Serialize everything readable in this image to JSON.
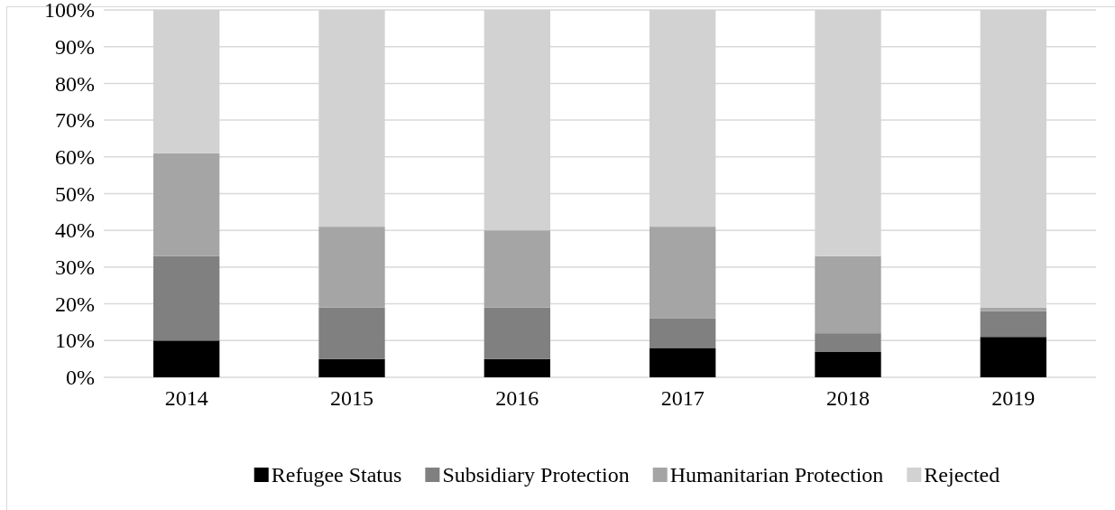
{
  "chart_data": {
    "type": "bar",
    "stacked": true,
    "categories": [
      "2014",
      "2015",
      "2016",
      "2017",
      "2018",
      "2019"
    ],
    "series": [
      {
        "name": "Refugee Status",
        "color": "#000000",
        "values": [
          10,
          5,
          5,
          8,
          7,
          11
        ]
      },
      {
        "name": "Subsidiary Protection",
        "color": "#808080",
        "values": [
          23,
          14,
          14,
          8,
          5,
          7
        ]
      },
      {
        "name": "Humanitarian Protection",
        "color": "#a5a5a5",
        "values": [
          28,
          22,
          21,
          25,
          21,
          1
        ]
      },
      {
        "name": "Rejected",
        "color": "#d2d2d2",
        "values": [
          39,
          59,
          60,
          59,
          67,
          81
        ]
      }
    ],
    "ylim": [
      0,
      100
    ],
    "yticks": [
      {
        "value": 0,
        "label": "0%"
      },
      {
        "value": 10,
        "label": "10%"
      },
      {
        "value": 20,
        "label": "20%"
      },
      {
        "value": 30,
        "label": "30%"
      },
      {
        "value": 40,
        "label": "40%"
      },
      {
        "value": 50,
        "label": "50%"
      },
      {
        "value": 60,
        "label": "60%"
      },
      {
        "value": 70,
        "label": "70%"
      },
      {
        "value": 80,
        "label": "80%"
      },
      {
        "value": 90,
        "label": "90%"
      },
      {
        "value": 100,
        "label": "100%"
      }
    ],
    "grid": "y",
    "legend": "bottom"
  }
}
